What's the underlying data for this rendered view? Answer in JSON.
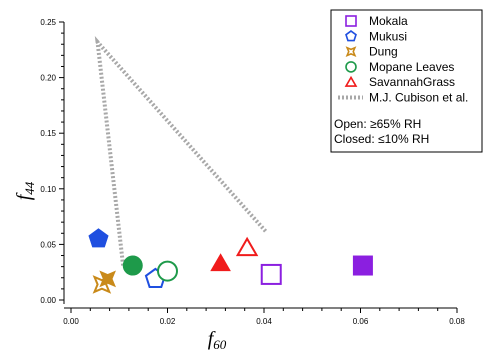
{
  "chart_data": {
    "type": "scatter",
    "xlabel": "f",
    "xlabel_sub": "60",
    "ylabel": "f",
    "ylabel_sub": "44",
    "xlim": [
      0.0,
      0.08
    ],
    "ylim": [
      0.0,
      0.25
    ],
    "x_ticks": [
      "0.00",
      "0.02",
      "0.04",
      "0.06",
      "0.08"
    ],
    "y_ticks": [
      "0.00",
      "0.05",
      "0.10",
      "0.15",
      "0.20",
      "0.25"
    ],
    "grid": false,
    "legend_position": "top-right",
    "series": [
      {
        "name": "Mokala",
        "marker": "square",
        "color": "#8B1FE0",
        "points": [
          {
            "x": 0.0415,
            "y": 0.023,
            "filled": false
          },
          {
            "x": 0.0605,
            "y": 0.031,
            "filled": true
          }
        ]
      },
      {
        "name": "Mukusi",
        "marker": "pentagon",
        "color": "#1F4FE0",
        "points": [
          {
            "x": 0.0175,
            "y": 0.019,
            "filled": false
          },
          {
            "x": 0.0057,
            "y": 0.055,
            "filled": true
          }
        ]
      },
      {
        "name": "Dung",
        "marker": "star",
        "color": "#C98A1A",
        "points": [
          {
            "x": 0.0064,
            "y": 0.014,
            "filled": false
          },
          {
            "x": 0.0076,
            "y": 0.019,
            "filled": true
          }
        ]
      },
      {
        "name": "Mopane Leaves",
        "marker": "circle",
        "color": "#1E9A4A",
        "points": [
          {
            "x": 0.02,
            "y": 0.026,
            "filled": false
          },
          {
            "x": 0.0128,
            "y": 0.031,
            "filled": true
          }
        ]
      },
      {
        "name": "SavannahGrass",
        "marker": "triangle",
        "color": "#F01C1C",
        "points": [
          {
            "x": 0.0365,
            "y": 0.047,
            "filled": false
          },
          {
            "x": 0.031,
            "y": 0.033,
            "filled": true
          }
        ]
      }
    ],
    "reference_line": {
      "name": "M.J. Cubison et al.",
      "color": "#A8A8A8",
      "style": "dotted",
      "points": [
        {
          "x": 0.0108,
          "y": 0.031
        },
        {
          "x": 0.0055,
          "y": 0.232
        },
        {
          "x": 0.0405,
          "y": 0.061
        }
      ]
    },
    "annotations": [
      "Open:  ≥65% RH",
      "Closed: ≤10% RH"
    ]
  }
}
